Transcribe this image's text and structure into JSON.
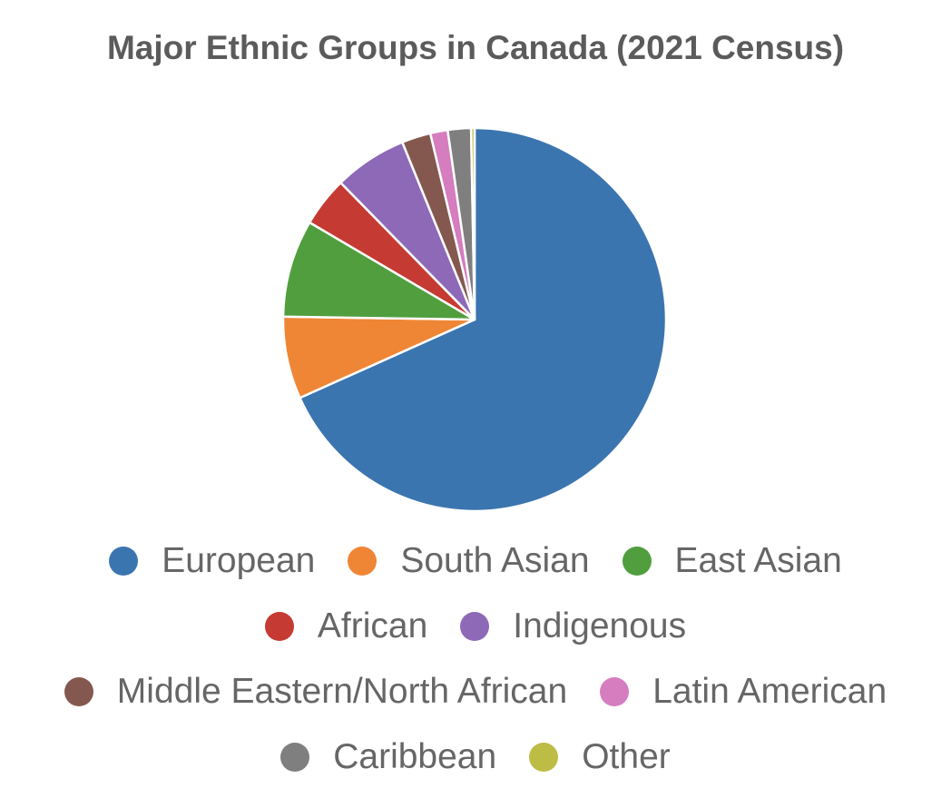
{
  "chart_data": {
    "type": "pie",
    "title": "Major Ethnic Groups in Canada (2021 Census)",
    "slices": [
      {
        "label": "European",
        "value": 69.8,
        "color": "#3b75af"
      },
      {
        "label": "South Asian",
        "value": 7.1,
        "color": "#ef8636"
      },
      {
        "label": "East Asian",
        "value": 8.4,
        "color": "#519e3e"
      },
      {
        "label": "African",
        "value": 4.3,
        "color": "#c53a32"
      },
      {
        "label": "Indigenous",
        "value": 6.3,
        "color": "#8d69b8"
      },
      {
        "label": "Middle Eastern/North African",
        "value": 2.5,
        "color": "#84584e"
      },
      {
        "label": "Latin American",
        "value": 1.5,
        "color": "#d57dbf"
      },
      {
        "label": "Caribbean",
        "value": 2.0,
        "color": "#7f7f7f"
      },
      {
        "label": "Other",
        "value": 0.3,
        "color": "#bdbc45"
      }
    ],
    "legend_position": "bottom",
    "start_direction": "top-clockwise"
  }
}
